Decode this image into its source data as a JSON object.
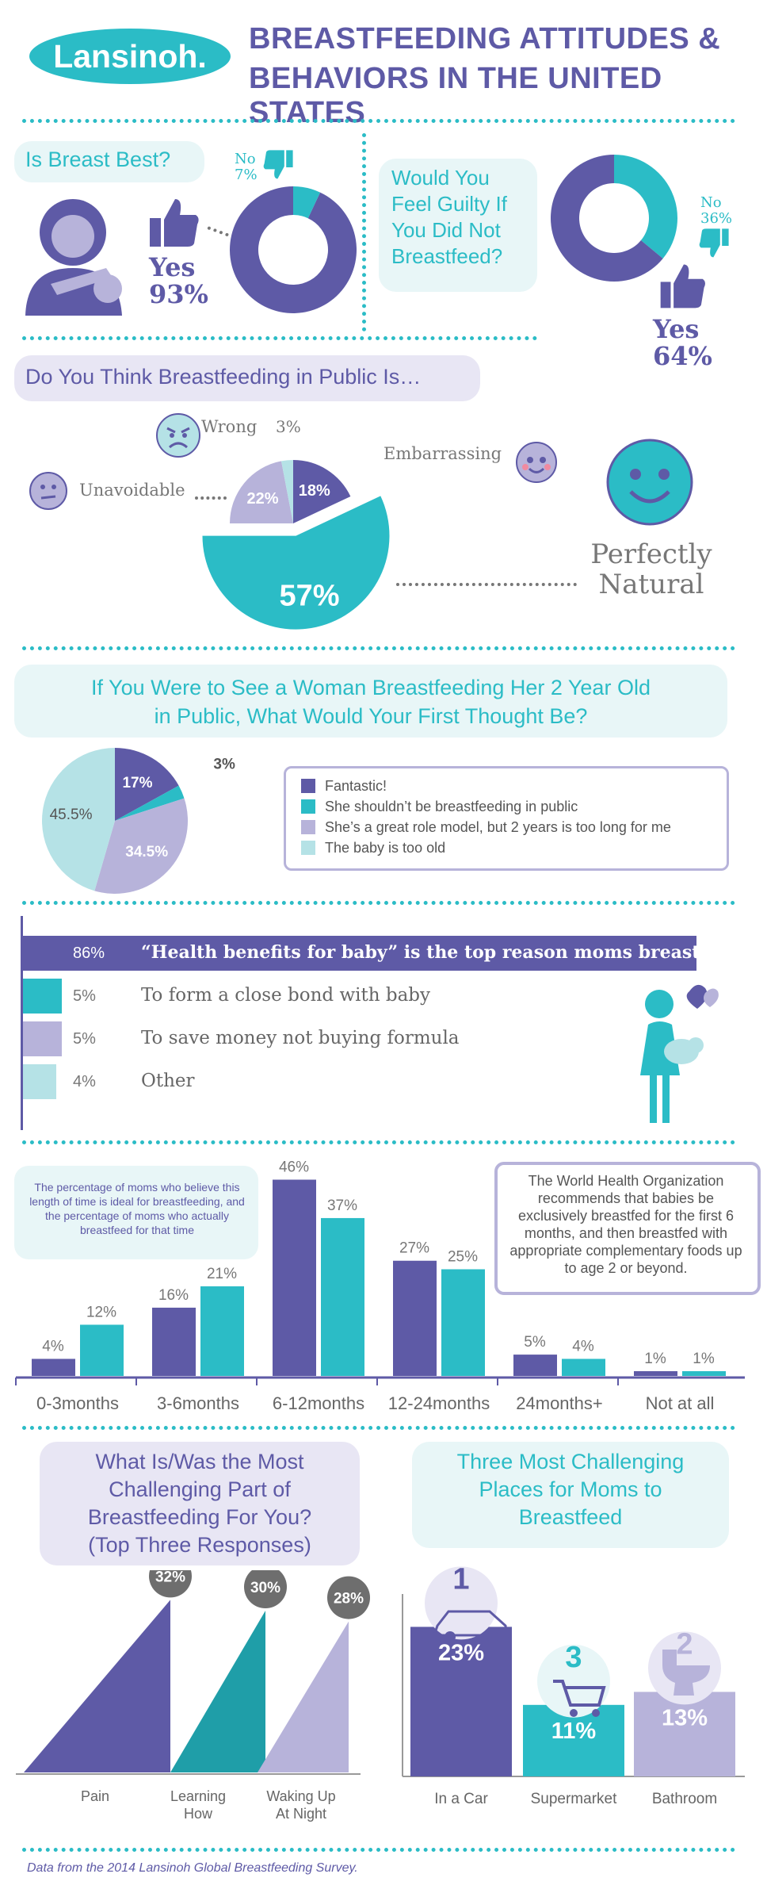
{
  "header": {
    "logo": "Lansinoh.",
    "title_line1": "BREASTFEEDING ATTITUDES &",
    "title_line2": "BEHAVIORS IN THE UNITED STATES"
  },
  "colors": {
    "purple": "#5e5aa6",
    "teal": "#2bbcc6",
    "lavender": "#b7b3da",
    "lightblue": "#b5e2e6"
  },
  "q1": {
    "title": "Is Breast Best?",
    "yes_label": "Yes",
    "yes_value": "93%",
    "no_label": "No",
    "no_value": "7%"
  },
  "q2": {
    "title_lines": [
      "Would You",
      "Feel Guilty If",
      "You Did Not",
      "Breastfeed?"
    ],
    "yes_label": "Yes",
    "yes_value": "64%",
    "no_label": "No",
    "no_value": "36%"
  },
  "q3": {
    "title": "Do You Think Breastfeeding in Public Is…",
    "labels": {
      "wrong": "Wrong",
      "embarrassing": "Embarrassing",
      "unavoidable": "Unavoidable",
      "natural_line1": "Perfectly",
      "natural_line2": "Natural"
    },
    "values": {
      "wrong": "3%",
      "embarrassing": "18%",
      "unavoidable": "22%",
      "natural": "57%"
    }
  },
  "q4": {
    "title_line1": "If You Were to See a Woman Breastfeeding Her 2 Year Old",
    "title_line2": "in Public, What Would Your First Thought Be?",
    "labels": [
      "17%",
      "3%",
      "34.5%",
      "45.5%"
    ],
    "legend": [
      "Fantastic!",
      "She shouldn’t be breastfeeding in public",
      "She’s a great role model, but 2 years is too long for me",
      "The baby is too old"
    ]
  },
  "reasons": {
    "rows": [
      {
        "pct": "86%",
        "text": "“Health benefits for baby” is the top reason moms breastfeed"
      },
      {
        "pct": "5%",
        "text": "To form a close bond with baby"
      },
      {
        "pct": "5%",
        "text": "To save money not buying formula"
      },
      {
        "pct": "4%",
        "text": "Other"
      }
    ]
  },
  "duration": {
    "note": "The percentage of moms who believe this length of time is ideal for breastfeeding, and the percentage of moms who actually breastfeed for that time",
    "who": "The World Health Organization recommends that babies be exclusively breastfed for the first 6 months, and then breastfed with appropriate complementary foods up to age 2 or beyond."
  },
  "challenge": {
    "title_lines": [
      "What Is/Was the Most",
      "Challenging Part of",
      "Breastfeeding For You?",
      "(Top Three Responses)"
    ],
    "items": [
      {
        "label_lines": [
          "Pain"
        ],
        "value": "32%"
      },
      {
        "label_lines": [
          "Learning",
          "How"
        ],
        "value": "30%"
      },
      {
        "label_lines": [
          "Waking Up",
          "At Night"
        ],
        "value": "28%"
      }
    ]
  },
  "places": {
    "title_lines": [
      "Three Most Challenging",
      "Places for Moms to",
      "Breastfeed"
    ],
    "items": [
      {
        "rank": "1",
        "label": "In a Car",
        "value": "23%"
      },
      {
        "rank": "3",
        "label": "Supermarket",
        "value": "11%"
      },
      {
        "rank": "2",
        "label": "Bathroom",
        "value": "13%"
      }
    ]
  },
  "footer": "Data from the 2014 Lansinoh Global Breastfeeding Survey.",
  "chart_data": [
    {
      "type": "pie",
      "title": "Is Breast Best?",
      "categories": [
        "Yes",
        "No"
      ],
      "values": [
        93,
        7
      ]
    },
    {
      "type": "pie",
      "title": "Would You Feel Guilty If You Did Not Breastfeed?",
      "categories": [
        "Yes",
        "No"
      ],
      "values": [
        64,
        36
      ]
    },
    {
      "type": "pie",
      "title": "Do You Think Breastfeeding in Public Is…",
      "categories": [
        "Embarrassing",
        "Perfectly Natural",
        "Unavoidable",
        "Wrong"
      ],
      "values": [
        18,
        57,
        22,
        3
      ]
    },
    {
      "type": "pie",
      "title": "If You Were to See a Woman Breastfeeding Her 2 Year Old in Public, What Would Your First Thought Be?",
      "categories": [
        "Fantastic!",
        "She shouldn’t be breastfeeding in public",
        "She’s a great role model, but 2 years is too long for me",
        "The baby is too old"
      ],
      "values": [
        17,
        3,
        34.5,
        45.5
      ]
    },
    {
      "type": "bar",
      "categories": [
        "“Health benefits for baby” is the top reason moms breastfeed",
        "To form a close bond with baby",
        "To save money not buying formula",
        "Other"
      ],
      "values": [
        86,
        5,
        5,
        4
      ]
    },
    {
      "type": "bar",
      "title": "The percentage of moms who believe this length of time is ideal for breastfeeding, and the percentage of moms who actually breastfeed for that time",
      "categories": [
        "0-3months",
        "3-6months",
        "6-12months",
        "12-24months",
        "24months+",
        "Not at all"
      ],
      "series": [
        {
          "values": [
            4,
            16,
            46,
            27,
            5,
            1
          ]
        },
        {
          "values": [
            12,
            21,
            37,
            25,
            4,
            1
          ]
        }
      ],
      "value_labels": [
        [
          "4%",
          "16%",
          "46%",
          "27%",
          "5%",
          "1%"
        ],
        [
          "12%",
          "21%",
          "37%",
          "25%",
          "4%",
          "1%"
        ]
      ]
    },
    {
      "type": "bar",
      "title": "What Is/Was the Most Challenging Part of Breastfeeding For You? (Top Three Responses)",
      "categories": [
        "Pain",
        "Learning How",
        "Waking Up At Night"
      ],
      "values": [
        32,
        30,
        28
      ]
    },
    {
      "type": "bar",
      "title": "Three Most Challenging Places for Moms to Breastfeed",
      "categories": [
        "In a Car",
        "Supermarket",
        "Bathroom"
      ],
      "values": [
        23,
        11,
        13
      ]
    }
  ]
}
